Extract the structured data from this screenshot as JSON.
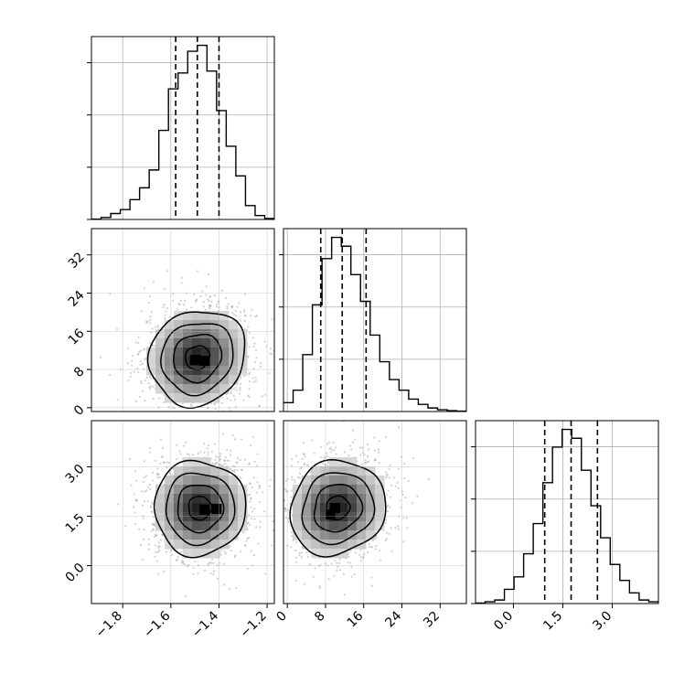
{
  "chart_data": {
    "type": "corner",
    "title": "",
    "grid": true,
    "quantiles_shown": 3,
    "parameters": [
      {
        "id": "p0",
        "label": "",
        "range": [
          -1.93,
          -1.17
        ],
        "ticks": [
          -1.8,
          -1.6,
          -1.4,
          -1.2
        ],
        "tick_labels": [
          "−1.8",
          "−1.6",
          "−1.4",
          "−1.2"
        ],
        "quantile_lines": [
          -1.58,
          -1.49,
          -1.4
        ],
        "histogram": {
          "bin_edges": [
            -1.93,
            -1.89,
            -1.85,
            -1.81,
            -1.77,
            -1.73,
            -1.69,
            -1.65,
            -1.61,
            -1.57,
            -1.53,
            -1.49,
            -1.45,
            -1.41,
            -1.37,
            -1.33,
            -1.29,
            -1.25,
            -1.21,
            -1.17
          ],
          "counts": [
            0.2,
            1,
            3,
            5,
            10,
            16,
            25,
            45,
            66,
            74,
            85,
            88,
            75,
            55,
            37,
            22,
            7,
            2,
            0.5
          ]
        }
      },
      {
        "id": "p1",
        "label": "",
        "range": [
          -0.8,
          37.5
        ],
        "ticks": [
          0,
          8,
          16,
          24,
          32
        ],
        "tick_labels": [
          "0",
          "8",
          "16",
          "24",
          "32"
        ],
        "quantile_lines": [
          7.0,
          11.5,
          16.5
        ],
        "histogram": {
          "bin_edges": [
            -0.8,
            1.217,
            3.233,
            5.25,
            7.267,
            9.283,
            11.3,
            13.317,
            15.333,
            17.35,
            19.367,
            21.383,
            23.4,
            25.417,
            27.433,
            29.45,
            31.467,
            33.483,
            35.5,
            37.5
          ],
          "counts": [
            5,
            12,
            32,
            60,
            86,
            98,
            93,
            77,
            62,
            43,
            28,
            18,
            12,
            7,
            4,
            2,
            1,
            0.5,
            0.2
          ]
        }
      },
      {
        "id": "p2",
        "label": "",
        "range": [
          -1.15,
          4.4
        ],
        "ticks": [
          0.0,
          1.5,
          3.0
        ],
        "tick_labels": [
          "0.0",
          "1.5",
          "3.0"
        ],
        "quantile_lines": [
          0.95,
          1.75,
          2.55
        ],
        "histogram": {
          "bin_edges": [
            -1.15,
            -0.858,
            -0.566,
            -0.274,
            0.018,
            0.31,
            0.602,
            0.894,
            1.186,
            1.478,
            1.77,
            2.062,
            2.354,
            2.646,
            2.938,
            3.23,
            3.522,
            3.814,
            4.106,
            4.4
          ],
          "counts": [
            0.3,
            1,
            2,
            8,
            15,
            28,
            45,
            68,
            88,
            98,
            93,
            75,
            55,
            37,
            22,
            13,
            6,
            2,
            1
          ]
        }
      }
    ],
    "pairs": [
      {
        "x_param": "p0",
        "y_param": "p1",
        "center": [
          -1.49,
          10.5
        ],
        "sigma": [
          0.1,
          5.0
        ],
        "correlation": 0.1,
        "contour_levels": [
          0.5,
          1.0,
          1.5,
          2.0
        ],
        "dense_core_points": [
          [
            -1.5,
            10.0
          ],
          [
            -1.46,
            9.8
          ]
        ]
      },
      {
        "x_param": "p0",
        "y_param": "p2",
        "center": [
          -1.48,
          1.75
        ],
        "sigma": [
          0.095,
          0.72
        ],
        "correlation": 0.0,
        "contour_levels": [
          0.5,
          1.0,
          1.5,
          2.0
        ],
        "dense_core_points": [
          [
            -1.46,
            1.7
          ],
          [
            -1.41,
            1.72
          ]
        ]
      },
      {
        "x_param": "p1",
        "y_param": "p2",
        "center": [
          10.5,
          1.75
        ],
        "sigma": [
          5.0,
          0.72
        ],
        "correlation": 0.1,
        "contour_levels": [
          0.5,
          1.0,
          1.5,
          2.0
        ],
        "dense_core_points": [
          [
            9.0,
            1.55
          ],
          [
            10.0,
            1.75
          ]
        ]
      }
    ]
  }
}
